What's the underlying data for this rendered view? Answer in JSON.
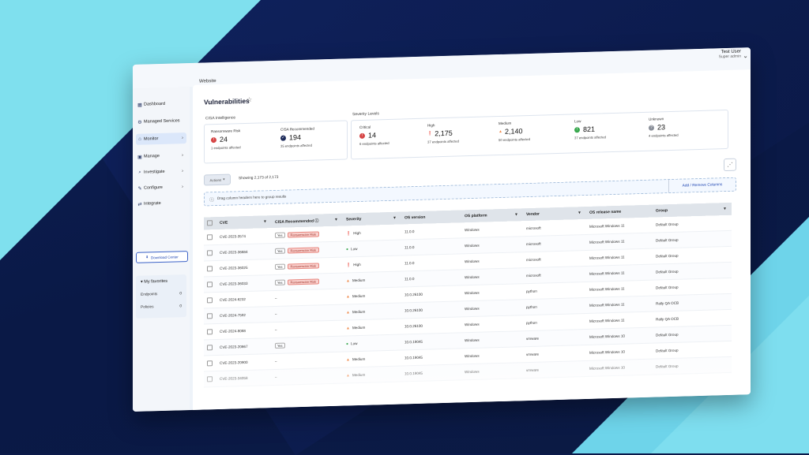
{
  "header": {
    "breadcrumb": "Website",
    "user_name": "Test User",
    "user_role": "Super admin"
  },
  "sidebar": {
    "items": [
      {
        "label": "Dashboard",
        "icon": "dashboard-icon"
      },
      {
        "label": "Managed Services",
        "icon": "services-icon"
      },
      {
        "label": "Monitor",
        "icon": "monitor-icon",
        "active": true
      },
      {
        "label": "Manage",
        "icon": "manage-icon"
      },
      {
        "label": "Investigate",
        "icon": "investigate-icon"
      },
      {
        "label": "Configure",
        "icon": "configure-icon"
      },
      {
        "label": "Integrate",
        "icon": "integrate-icon"
      }
    ],
    "download_label": "Download Center",
    "favorites": {
      "title": "My favorites",
      "items": [
        {
          "label": "Endpoints",
          "count": "0"
        },
        {
          "label": "Policies",
          "count": "0"
        }
      ]
    }
  },
  "page": {
    "title": "Vulnerabilities",
    "cisa": {
      "label": "CISA Intelligence",
      "metrics": [
        {
          "label": "Ransomware Risk",
          "value": "24",
          "sub": "1 endpoints affected",
          "color": "#d64545"
        },
        {
          "label": "CISA Recommended",
          "value": "194",
          "sub": "35 endpoints affected",
          "color": "#1d2b5a"
        }
      ]
    },
    "severity": {
      "label": "Severity Levels",
      "metrics": [
        {
          "label": "Critical",
          "value": "14",
          "sub": "6 endpoints affected",
          "color": "#d64545"
        },
        {
          "label": "High",
          "value": "2,175",
          "sub": "37 endpoints affected",
          "color": "#e2552e"
        },
        {
          "label": "Medium",
          "value": "2,140",
          "sub": "50 endpoints affected",
          "color": "#f08a4b"
        },
        {
          "label": "Low",
          "value": "821",
          "sub": "37 endpoints affected",
          "color": "#3aa84f"
        },
        {
          "label": "Unknown",
          "value": "23",
          "sub": "4 endpoints affected",
          "color": "#8a8f99"
        }
      ]
    },
    "actions_label": "Actions",
    "showing": "Showing 2,173 of 2,173",
    "drag_hint": "Drag column headers here to group results",
    "add_remove_columns": "Add / Remove Columns",
    "table": {
      "columns": [
        "CVE",
        "CISA Recommended",
        "Severity",
        "OS version",
        "OS platform",
        "Vendor",
        "OS release name",
        "Group"
      ],
      "rows": [
        {
          "cve": "CVE-2023-3574",
          "yes": "Yes",
          "rw": "Ransomware Risk",
          "sev": "High",
          "os": "11.0.0",
          "plat": "Windows",
          "vendor": "microsoft",
          "rel": "Microsoft Windows 11",
          "group": "Default Group"
        },
        {
          "cve": "CVE-2023-36884",
          "yes": "Yes",
          "rw": "Ransomware Risk",
          "sev": "Low",
          "os": "11.0.0",
          "plat": "Windows",
          "vendor": "microsoft",
          "rel": "Microsoft Windows 11",
          "group": "Default Group"
        },
        {
          "cve": "CVE-2023-36025",
          "yes": "Yes",
          "rw": "Ransomware Risk",
          "sev": "High",
          "os": "11.0.0",
          "plat": "Windows",
          "vendor": "microsoft",
          "rel": "Microsoft Windows 11",
          "group": "Default Group"
        },
        {
          "cve": "CVE-2023-36033",
          "yes": "Yes",
          "rw": "Ransomware Risk",
          "sev": "Medium",
          "os": "11.0.0",
          "plat": "Windows",
          "vendor": "microsoft",
          "rel": "Microsoft Windows 11",
          "group": "Default Group"
        },
        {
          "cve": "CVE-2024-6232",
          "yes": "",
          "rw": "",
          "dash": "–",
          "sev": "Medium",
          "os": "10.0.26100",
          "plat": "Windows",
          "vendor": "python",
          "rel": "Microsoft Windows 11",
          "group": "Default Group"
        },
        {
          "cve": "CVE-2024-7592",
          "yes": "",
          "rw": "",
          "dash": "–",
          "sev": "Medium",
          "os": "10.0.26100",
          "plat": "Windows",
          "vendor": "python",
          "rel": "Microsoft Windows 11",
          "group": "Rally QA OCB"
        },
        {
          "cve": "CVE-2024-8088",
          "yes": "",
          "rw": "",
          "dash": "–",
          "sev": "Medium",
          "os": "10.0.26100",
          "plat": "Windows",
          "vendor": "python",
          "rel": "Microsoft Windows 11",
          "group": "Rally QA OCB"
        },
        {
          "cve": "CVE-2023-20867",
          "yes": "Yes",
          "rw": "",
          "sev": "Low",
          "os": "10.0.19045",
          "plat": "Windows",
          "vendor": "vmware",
          "rel": "Microsoft Windows 10",
          "group": "Default Group"
        },
        {
          "cve": "CVE-2023-20900",
          "yes": "",
          "rw": "",
          "dash": "–",
          "sev": "Medium",
          "os": "10.0.19045",
          "plat": "Windows",
          "vendor": "vmware",
          "rel": "Microsoft Windows 10",
          "group": "Default Group"
        },
        {
          "cve": "CVE-2023-34058",
          "yes": "",
          "rw": "",
          "dash": "–",
          "sev": "Medium",
          "os": "10.0.19045",
          "plat": "Windows",
          "vendor": "vmware",
          "rel": "Microsoft Windows 10",
          "group": "Default Group"
        }
      ]
    }
  },
  "colors": {
    "accent": "#1f46b3",
    "link": "#2456c9",
    "bg_dark": "#0b1a4a",
    "bg_cyan": "#7fe0ee"
  }
}
